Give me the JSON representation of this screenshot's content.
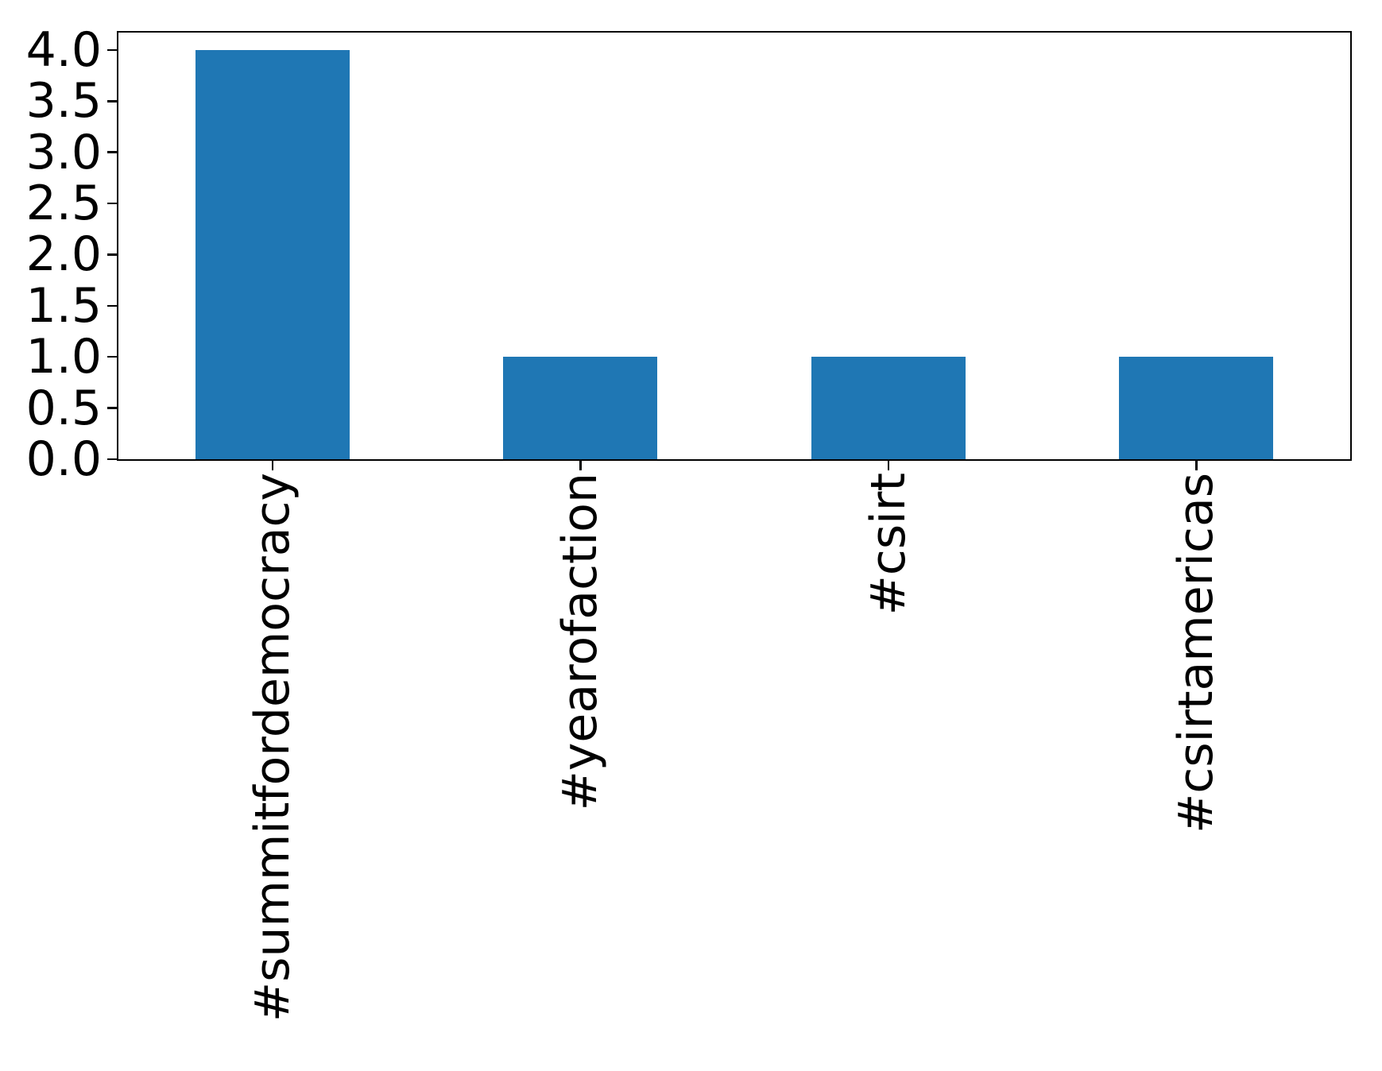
{
  "figure": {
    "background": "#ffffff"
  },
  "chart_data": {
    "type": "bar",
    "categories": [
      "#summitfordemocracy",
      "#yearofaction",
      "#csirt",
      "#csirtamericas"
    ],
    "values": [
      4,
      1,
      1,
      1
    ],
    "title": "",
    "xlabel": "",
    "ylabel": "",
    "ylim": [
      0,
      4.17
    ],
    "yticks": [
      0,
      0.5,
      1,
      1.5,
      2,
      2.5,
      3,
      3.5,
      4
    ],
    "ytick_labels": [
      "0.0",
      "0.5",
      "1.0",
      "1.5",
      "2.0",
      "2.5",
      "3.0",
      "3.5",
      "4.0"
    ],
    "bar_color": "#1f77b4",
    "axis_color": "#000000",
    "text_color": "#000000",
    "bar_rel_width": 0.5,
    "x_label_rotation_deg": 90,
    "grid": false,
    "legend": false
  }
}
